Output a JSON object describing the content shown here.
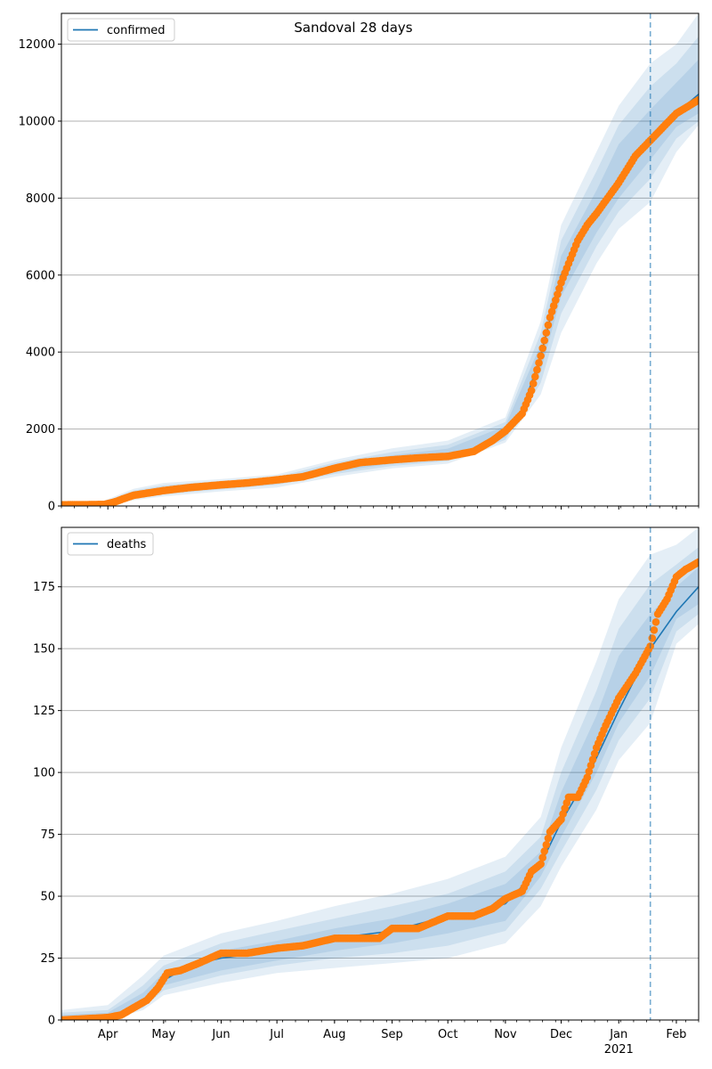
{
  "figure": {
    "title": "Sandoval 28 days"
  },
  "colors": {
    "model_line": "#1f77b4",
    "observed": "#ff7f0e",
    "band": "#1f77b4",
    "grid": "#b0b0b0",
    "today_line": "#1f77b4"
  },
  "chart_data": [
    {
      "type": "line",
      "panel": "top",
      "title": "Sandoval 28 days",
      "legend": {
        "label": "confirmed",
        "placement": "top-left"
      },
      "xlabel": "",
      "ylabel": "",
      "x_start": "2020-03-07",
      "x_end": "2021-02-13",
      "today": "2021-01-18",
      "ylim": [
        0,
        12800
      ],
      "yticks": [
        0,
        2000,
        4000,
        6000,
        8000,
        10000,
        12000
      ],
      "grid": "horizontal",
      "xtick_labels": [
        "Apr",
        "May",
        "Jun",
        "Jul",
        "Aug",
        "Sep",
        "Oct",
        "Nov",
        "Dec",
        "Jan",
        "Feb"
      ],
      "xtick_dates": [
        "2020-04-01",
        "2020-05-01",
        "2020-06-01",
        "2020-07-01",
        "2020-08-01",
        "2020-09-01",
        "2020-10-01",
        "2020-11-01",
        "2020-12-01",
        "2021-01-01",
        "2021-02-01"
      ],
      "year_label": {
        "text": "2021",
        "date": "2021-01-01"
      },
      "model": {
        "name": "confirmed",
        "x": [
          "2020-03-07",
          "2020-03-27",
          "2020-04-05",
          "2020-04-15",
          "2020-05-01",
          "2020-05-15",
          "2020-06-01",
          "2020-06-15",
          "2020-07-01",
          "2020-07-15",
          "2020-08-01",
          "2020-08-15",
          "2020-09-01",
          "2020-09-15",
          "2020-10-01",
          "2020-10-15",
          "2020-11-01",
          "2020-11-10",
          "2020-11-20",
          "2020-12-01",
          "2020-12-10",
          "2020-12-20",
          "2021-01-01",
          "2021-01-10",
          "2021-01-18",
          "2021-02-01",
          "2021-02-13"
        ],
        "values": [
          0,
          10,
          140,
          300,
          400,
          480,
          550,
          610,
          680,
          780,
          950,
          1100,
          1180,
          1240,
          1290,
          1420,
          1900,
          2500,
          3900,
          6000,
          6900,
          7600,
          8400,
          9100,
          9500,
          10200,
          10700
        ]
      },
      "bands": [
        {
          "x": [
            "2020-03-07",
            "2020-03-27",
            "2020-04-15",
            "2020-05-01",
            "2020-06-01",
            "2020-07-01",
            "2020-08-01",
            "2020-09-01",
            "2020-10-01",
            "2020-11-01",
            "2020-11-20",
            "2020-12-01",
            "2020-12-20",
            "2021-01-01",
            "2021-01-18",
            "2021-02-01",
            "2021-02-13"
          ],
          "lower": [
            0,
            0,
            150,
            250,
            380,
            480,
            760,
            980,
            1100,
            1650,
            2900,
            4500,
            6300,
            7200,
            7900,
            9200,
            9900
          ],
          "upper": [
            60,
            80,
            450,
            600,
            700,
            820,
            1200,
            1500,
            1700,
            2300,
            4800,
            7300,
            9200,
            10400,
            11500,
            12000,
            12800
          ]
        },
        {
          "x": [
            "2020-03-07",
            "2020-03-27",
            "2020-04-15",
            "2020-05-01",
            "2020-06-01",
            "2020-07-01",
            "2020-08-01",
            "2020-09-01",
            "2020-10-01",
            "2020-11-01",
            "2020-11-20",
            "2020-12-01",
            "2020-12-20",
            "2021-01-01",
            "2021-01-18",
            "2021-02-01",
            "2021-02-13"
          ],
          "lower": [
            0,
            0,
            190,
            300,
            430,
            550,
            830,
            1040,
            1170,
            1720,
            3200,
            5000,
            6750,
            7650,
            8500,
            9550,
            10000
          ],
          "upper": [
            40,
            50,
            400,
            540,
            650,
            760,
            1130,
            1400,
            1590,
            2180,
            4500,
            6900,
            8700,
            9900,
            10900,
            11500,
            12200
          ]
        },
        {
          "x": [
            "2020-03-07",
            "2020-03-27",
            "2020-04-15",
            "2020-05-01",
            "2020-06-01",
            "2020-07-01",
            "2020-08-01",
            "2020-09-01",
            "2020-10-01",
            "2020-11-01",
            "2020-11-20",
            "2020-12-01",
            "2020-12-20",
            "2021-01-01",
            "2021-01-18",
            "2021-02-01",
            "2021-02-13"
          ],
          "lower": [
            0,
            0,
            230,
            340,
            480,
            610,
            890,
            1100,
            1230,
            1790,
            3500,
            5450,
            7100,
            8000,
            9000,
            9850,
            10200
          ],
          "upper": [
            25,
            30,
            350,
            480,
            600,
            710,
            1060,
            1320,
            1490,
            2080,
            4200,
            6500,
            8200,
            9400,
            10300,
            11000,
            11600
          ]
        }
      ],
      "observed": {
        "name": "confirmed",
        "x": [
          "2020-03-07",
          "2020-03-20",
          "2020-03-30",
          "2020-04-05",
          "2020-04-10",
          "2020-04-15",
          "2020-05-01",
          "2020-05-15",
          "2020-06-01",
          "2020-06-15",
          "2020-07-01",
          "2020-07-15",
          "2020-08-01",
          "2020-08-15",
          "2020-09-01",
          "2020-09-15",
          "2020-10-01",
          "2020-10-15",
          "2020-10-25",
          "2020-11-01",
          "2020-11-10",
          "2020-11-15",
          "2020-11-20",
          "2020-11-25",
          "2020-12-01",
          "2020-12-05",
          "2020-12-10",
          "2020-12-15",
          "2020-12-20",
          "2021-01-01",
          "2021-01-10",
          "2021-01-18",
          "2021-01-25",
          "2021-02-01",
          "2021-02-13"
        ],
        "values": [
          30,
          35,
          40,
          110,
          200,
          280,
          400,
          480,
          550,
          600,
          680,
          760,
          980,
          1130,
          1200,
          1250,
          1290,
          1420,
          1700,
          1950,
          2400,
          3000,
          3900,
          4900,
          5800,
          6300,
          6900,
          7300,
          7600,
          8400,
          9100,
          9500,
          9850,
          10200,
          10550
        ]
      }
    },
    {
      "type": "line",
      "panel": "bottom",
      "title": "",
      "legend": {
        "label": "deaths",
        "placement": "top-left"
      },
      "xlabel": "",
      "ylabel": "",
      "x_start": "2020-03-07",
      "x_end": "2021-02-13",
      "today": "2021-01-18",
      "ylim": [
        0,
        199
      ],
      "yticks": [
        0,
        25,
        50,
        75,
        100,
        125,
        150,
        175
      ],
      "grid": "horizontal",
      "xtick_labels": [
        "Apr",
        "May",
        "Jun",
        "Jul",
        "Aug",
        "Sep",
        "Oct",
        "Nov",
        "Dec",
        "Jan",
        "Feb"
      ],
      "xtick_dates": [
        "2020-04-01",
        "2020-05-01",
        "2020-06-01",
        "2020-07-01",
        "2020-08-01",
        "2020-09-01",
        "2020-10-01",
        "2020-11-01",
        "2020-12-01",
        "2021-01-01",
        "2021-02-01"
      ],
      "year_label": {
        "text": "2021",
        "date": "2021-01-01"
      },
      "model": {
        "name": "deaths",
        "x": [
          "2020-03-07",
          "2020-04-01",
          "2020-04-10",
          "2020-04-20",
          "2020-05-01",
          "2020-05-15",
          "2020-06-01",
          "2020-07-01",
          "2020-08-01",
          "2020-09-01",
          "2020-10-01",
          "2020-10-15",
          "2020-11-01",
          "2020-11-10",
          "2020-11-20",
          "2020-12-01",
          "2020-12-15",
          "2021-01-01",
          "2021-01-18",
          "2021-02-01",
          "2021-02-13"
        ],
        "values": [
          0,
          0,
          3,
          8,
          16,
          22,
          25,
          28,
          33,
          36,
          42,
          43,
          47,
          54,
          63,
          80,
          98,
          125,
          150,
          165,
          175
        ]
      },
      "bands": [
        {
          "x": [
            "2020-03-07",
            "2020-04-01",
            "2020-04-20",
            "2020-05-01",
            "2020-06-01",
            "2020-07-01",
            "2020-08-01",
            "2020-09-01",
            "2020-10-01",
            "2020-11-01",
            "2020-11-20",
            "2020-12-01",
            "2020-12-20",
            "2021-01-01",
            "2021-01-18",
            "2021-02-01",
            "2021-02-13"
          ],
          "lower": [
            0,
            0,
            4,
            10,
            15,
            19,
            21,
            23,
            25,
            31,
            46,
            62,
            85,
            105,
            120,
            152,
            160
          ],
          "upper": [
            4,
            6,
            18,
            26,
            35,
            40,
            46,
            51,
            57,
            66,
            82,
            110,
            145,
            170,
            188,
            192,
            199
          ]
        },
        {
          "x": [
            "2020-03-07",
            "2020-04-01",
            "2020-04-20",
            "2020-05-01",
            "2020-06-01",
            "2020-07-01",
            "2020-08-01",
            "2020-09-01",
            "2020-10-01",
            "2020-11-01",
            "2020-11-20",
            "2020-12-01",
            "2020-12-20",
            "2021-01-01",
            "2021-01-18",
            "2021-02-01",
            "2021-02-13"
          ],
          "lower": [
            0,
            0,
            5,
            12,
            18,
            22,
            25,
            27,
            30,
            36,
            53,
            68,
            93,
            113,
            130,
            157,
            164
          ],
          "upper": [
            3,
            4,
            14,
            22,
            31,
            36,
            41,
            46,
            51,
            60,
            74,
            100,
            133,
            158,
            176,
            184,
            191
          ]
        },
        {
          "x": [
            "2020-03-07",
            "2020-04-01",
            "2020-04-20",
            "2020-05-01",
            "2020-06-01",
            "2020-07-01",
            "2020-08-01",
            "2020-09-01",
            "2020-10-01",
            "2020-11-01",
            "2020-11-20",
            "2020-12-01",
            "2020-12-20",
            "2021-01-01",
            "2021-01-18",
            "2021-02-01",
            "2021-02-13"
          ],
          "lower": [
            0,
            0,
            6,
            14,
            20,
            24,
            28,
            31,
            35,
            40,
            58,
            74,
            100,
            120,
            139,
            162,
            168
          ],
          "upper": [
            2,
            3,
            11,
            19,
            28,
            32,
            37,
            41,
            47,
            55,
            68,
            92,
            123,
            147,
            164,
            175,
            183
          ]
        }
      ],
      "observed": {
        "name": "deaths",
        "x": [
          "2020-03-07",
          "2020-04-01",
          "2020-04-08",
          "2020-04-15",
          "2020-04-22",
          "2020-04-28",
          "2020-05-03",
          "2020-05-10",
          "2020-05-20",
          "2020-06-01",
          "2020-06-15",
          "2020-07-01",
          "2020-07-15",
          "2020-08-01",
          "2020-08-15",
          "2020-08-25",
          "2020-09-01",
          "2020-09-15",
          "2020-10-01",
          "2020-10-15",
          "2020-10-25",
          "2020-11-01",
          "2020-11-10",
          "2020-11-15",
          "2020-11-20",
          "2020-11-25",
          "2020-12-01",
          "2020-12-05",
          "2020-12-10",
          "2020-12-15",
          "2020-12-20",
          "2020-12-25",
          "2021-01-01",
          "2021-01-10",
          "2021-01-18",
          "2021-01-22",
          "2021-01-27",
          "2021-02-01",
          "2021-02-06",
          "2021-02-13"
        ],
        "values": [
          0,
          1,
          2,
          5,
          8,
          13,
          19,
          20,
          23,
          27,
          27,
          29,
          30,
          33,
          33,
          33,
          37,
          37,
          42,
          42,
          45,
          49,
          52,
          60,
          63,
          76,
          81,
          90,
          90,
          98,
          110,
          119,
          130,
          140,
          151,
          164,
          170,
          179,
          182,
          185
        ]
      }
    }
  ]
}
